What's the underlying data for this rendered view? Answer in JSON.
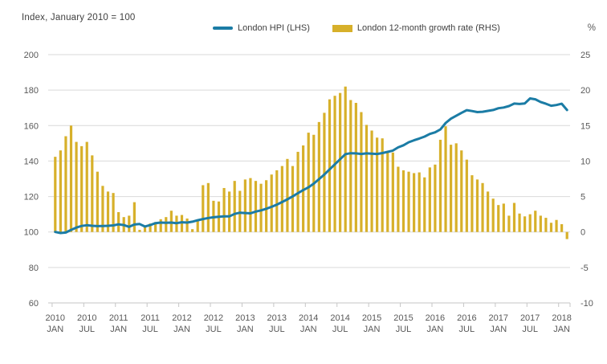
{
  "header": {
    "index_note": "Index, January 2010 = 100",
    "right_axis_unit": "%"
  },
  "legend": {
    "hpi_label": "London HPI (LHS)",
    "growth_label": "London 12-month growth rate (RHS)"
  },
  "colors": {
    "line": "#1b7ca5",
    "bar": "#d7b02a",
    "grid": "#d9d9d9",
    "axis": "#c6c6c6",
    "tick_text": "#595959"
  },
  "chart_data": {
    "type": "combo",
    "x_start": "2010-01",
    "x_end": "2018-02",
    "months_per_point": 1,
    "left_axis": {
      "title": "Index, January 2010 = 100",
      "ticks": [
        200,
        180,
        160,
        140,
        120,
        100,
        80,
        60
      ],
      "range": [
        60,
        200
      ]
    },
    "right_axis": {
      "title": "%",
      "ticks": [
        25,
        20,
        15,
        10,
        5,
        0,
        -5,
        -10
      ],
      "range": [
        -10,
        25
      ]
    },
    "x_tick_labels": [
      {
        "year": "2010",
        "month": "JAN"
      },
      {
        "year": "2010",
        "month": "JUL"
      },
      {
        "year": "2011",
        "month": "JAN"
      },
      {
        "year": "2011",
        "month": "JUL"
      },
      {
        "year": "2012",
        "month": "JAN"
      },
      {
        "year": "2012",
        "month": "JUL"
      },
      {
        "year": "2013",
        "month": "JAN"
      },
      {
        "year": "2013",
        "month": "JUL"
      },
      {
        "year": "2014",
        "month": "JAN"
      },
      {
        "year": "2014",
        "month": "JUL"
      },
      {
        "year": "2015",
        "month": "JAN"
      },
      {
        "year": "2015",
        "month": "JUL"
      },
      {
        "year": "2016",
        "month": "JAN"
      },
      {
        "year": "2016",
        "month": "JUL"
      },
      {
        "year": "2017",
        "month": "JAN"
      },
      {
        "year": "2017",
        "month": "JUL"
      },
      {
        "year": "2018",
        "month": "JAN"
      }
    ],
    "grid": true,
    "legend_position": "top",
    "series": [
      {
        "name": "London HPI (LHS)",
        "type": "line",
        "axis": "left",
        "color": "#1b7ca5",
        "values": [
          100.0,
          99.4,
          99.7,
          101.2,
          102.5,
          103.4,
          103.8,
          103.5,
          103.3,
          103.4,
          103.5,
          103.7,
          104.3,
          103.9,
          102.9,
          104.2,
          104.5,
          103.1,
          103.9,
          105.0,
          105.3,
          105.2,
          105.3,
          105.0,
          105.5,
          105.3,
          105.8,
          106.6,
          107.3,
          107.9,
          108.3,
          108.6,
          108.8,
          108.8,
          110.2,
          110.9,
          110.7,
          110.5,
          111.5,
          112.2,
          113.1,
          114.2,
          115.4,
          116.9,
          118.4,
          120.1,
          121.9,
          123.6,
          125.2,
          127.3,
          129.8,
          132.4,
          135.3,
          138.2,
          141.0,
          143.9,
          144.4,
          144.3,
          144.0,
          144.3,
          144.2,
          144.0,
          144.5,
          145.2,
          145.9,
          147.7,
          148.9,
          150.6,
          151.7,
          152.7,
          153.8,
          155.3,
          156.2,
          157.8,
          161.5,
          163.9,
          165.5,
          167.2,
          168.7,
          168.2,
          167.6,
          167.8,
          168.3,
          168.8,
          169.8,
          170.2,
          171.0,
          172.4,
          172.2,
          172.5,
          175.3,
          174.8,
          173.3,
          172.3,
          171.2,
          171.6,
          172.3,
          168.8
        ]
      },
      {
        "name": "London 12-month growth rate (RHS)",
        "type": "bar",
        "axis": "right",
        "color": "#d7b02a",
        "values": [
          10.6,
          11.5,
          13.5,
          15.0,
          12.7,
          12.1,
          12.7,
          10.8,
          8.5,
          6.5,
          5.7,
          5.5,
          2.8,
          2.1,
          2.3,
          4.2,
          0.3,
          0.8,
          1.2,
          1.4,
          1.8,
          2.1,
          3.0,
          2.3,
          2.4,
          1.9,
          0.4,
          1.6,
          6.6,
          6.9,
          4.4,
          4.3,
          6.2,
          5.7,
          7.2,
          5.8,
          7.4,
          7.6,
          7.2,
          6.8,
          7.3,
          8.1,
          8.7,
          9.3,
          10.3,
          9.3,
          11.3,
          12.2,
          14.0,
          13.7,
          15.5,
          16.8,
          18.7,
          19.2,
          19.6,
          20.5,
          18.6,
          18.2,
          16.9,
          15.1,
          14.3,
          13.3,
          13.2,
          11.2,
          11.2,
          9.2,
          8.7,
          8.5,
          8.3,
          8.4,
          7.7,
          9.1,
          9.5,
          13.0,
          14.9,
          12.3,
          12.5,
          11.5,
          10.2,
          8.0,
          7.4,
          6.9,
          5.7,
          4.7,
          3.8,
          4.0,
          2.3,
          4.1,
          2.6,
          2.2,
          2.5,
          3.0,
          2.3,
          2.0,
          1.3,
          1.7,
          1.1,
          -1.0
        ]
      }
    ]
  }
}
